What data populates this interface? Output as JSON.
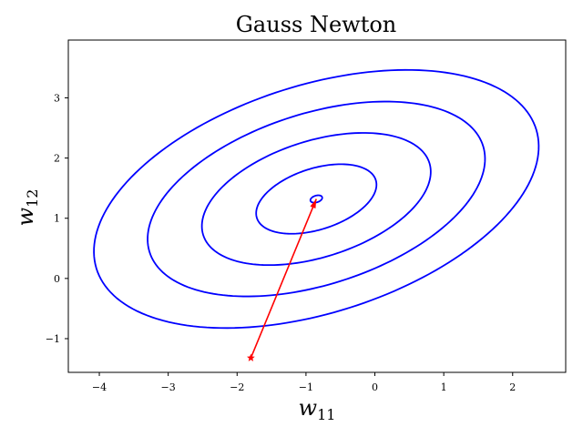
{
  "chart_data": {
    "type": "line",
    "title": "Gauss Newton",
    "xlabel": {
      "base": "w",
      "sub": "11"
    },
    "ylabel": {
      "base": "w",
      "sub": "12"
    },
    "xlim": [
      -4.45,
      2.77
    ],
    "ylim": [
      -1.56,
      3.96
    ],
    "xticks": [
      -4,
      -3,
      -2,
      -1,
      0,
      1,
      2
    ],
    "yticks": [
      -1,
      0,
      1,
      2,
      3
    ],
    "xtick_labels": [
      "−4",
      "−3",
      "−2",
      "−1",
      "0",
      "1",
      "2"
    ],
    "ytick_labels": [
      "−1",
      "0",
      "1",
      "2",
      "3"
    ],
    "grid": false,
    "contours": {
      "color": "#0000ff",
      "center": [
        -0.85,
        1.32
      ],
      "rotation_deg": 22,
      "levels": [
        {
          "semi_major": 0.09,
          "semi_minor": 0.055
        },
        {
          "semi_major": 0.92,
          "semi_minor": 0.5
        },
        {
          "semi_major": 1.75,
          "semi_minor": 0.95
        },
        {
          "semi_major": 2.58,
          "semi_minor": 1.4
        },
        {
          "semi_major": 3.4,
          "semi_minor": 1.86
        }
      ]
    },
    "path": {
      "color": "#ff0000",
      "points": [
        {
          "x": -1.8,
          "y": -1.32
        },
        {
          "x": -0.85,
          "y": 1.32
        }
      ],
      "start_marker": "star",
      "end_marker": "arrowhead"
    }
  }
}
